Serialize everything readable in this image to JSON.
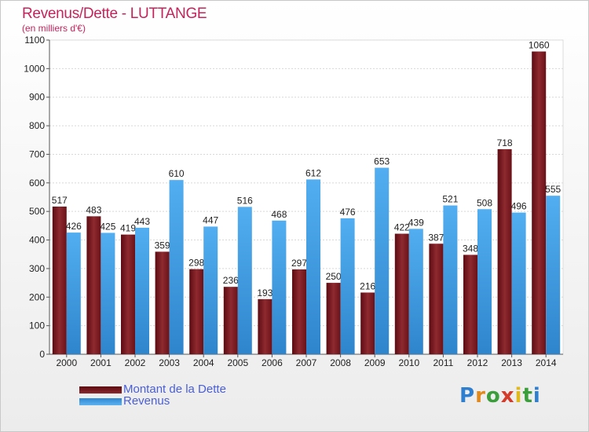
{
  "header": {
    "title": "Revenus/Dette - LUTTANGE",
    "subtitle": "(en milliers d'€)"
  },
  "colors": {
    "dette": "#7a1a1f",
    "revenus": "#4aa3e8",
    "title": "#c3245c",
    "legend_text": "#4a5fd6"
  },
  "chart_data": {
    "type": "bar",
    "title": "Revenus/Dette - LUTTANGE",
    "ylabel": "(en milliers d'€)",
    "ylim": [
      0,
      1100
    ],
    "yticks": [
      0,
      100,
      200,
      300,
      400,
      500,
      600,
      700,
      800,
      900,
      1000,
      1100
    ],
    "categories": [
      "2000",
      "2001",
      "2002",
      "2003",
      "2004",
      "2005",
      "2006",
      "2007",
      "2008",
      "2009",
      "2010",
      "2011",
      "2012",
      "2013",
      "2014"
    ],
    "series": [
      {
        "name": "Montant de la Dette",
        "color": "#7a1a1f",
        "values": [
          517,
          483,
          419,
          359,
          298,
          236,
          193,
          297,
          250,
          216,
          422,
          387,
          348,
          718,
          1060
        ]
      },
      {
        "name": "Revenus",
        "color": "#4aa3e8",
        "values": [
          426,
          425,
          443,
          610,
          447,
          516,
          468,
          612,
          476,
          653,
          439,
          521,
          508,
          496,
          555
        ]
      }
    ],
    "grid": true,
    "legend": "bottom-left"
  },
  "legend": [
    {
      "label": "Montant de la Dette"
    },
    {
      "label": "Revenus"
    }
  ],
  "logo": {
    "text": "Proxiti"
  }
}
